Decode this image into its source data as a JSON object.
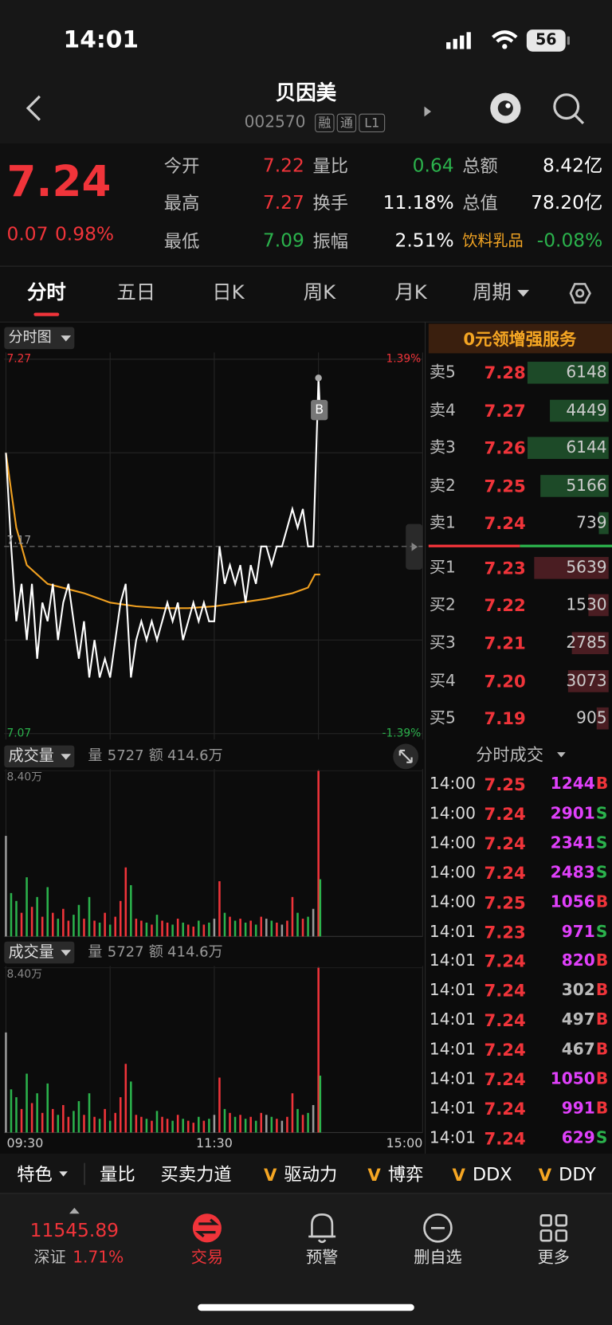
{
  "status": {
    "time": "14:01",
    "battery": "56"
  },
  "header": {
    "title": "贝因美",
    "code": "002570",
    "badges": [
      "融",
      "通",
      "L1"
    ]
  },
  "quote": {
    "price": "7.24",
    "change": "0.07",
    "change_pct": "0.98%",
    "color": "#f0343a",
    "stats": [
      [
        {
          "label": "今开",
          "value": "7.22",
          "color": "#f0343a"
        },
        {
          "label": "量比",
          "value": "0.64",
          "color": "#2bb24c"
        },
        {
          "label": "总额",
          "value": "8.42亿",
          "color": "#ffffff"
        }
      ],
      [
        {
          "label": "最高",
          "value": "7.27",
          "color": "#f0343a"
        },
        {
          "label": "换手",
          "value": "11.18%",
          "color": "#ffffff"
        },
        {
          "label": "总值",
          "value": "78.20亿",
          "color": "#ffffff"
        }
      ],
      [
        {
          "label": "最低",
          "value": "7.09",
          "color": "#2bb24c"
        },
        {
          "label": "振幅",
          "value": "2.51%",
          "color": "#ffffff"
        },
        {
          "label": "饮料乳品",
          "value": "-0.08%",
          "color": "#2bb24c",
          "label_color": "#f5a623"
        }
      ]
    ]
  },
  "tabs": {
    "items": [
      "分时",
      "五日",
      "日K",
      "周K",
      "月K",
      "周期"
    ],
    "active": 0
  },
  "intraday": {
    "type": "line",
    "label": "分时图",
    "marker": "B",
    "color": "#ffffff",
    "avg_color": "#f0a020",
    "up_color": "#f0343a",
    "down_color": "#2bb24c",
    "flat_color": "#9a9a9a",
    "ylim": [
      7.07,
      7.27
    ],
    "yticks": [
      7.07,
      7.17,
      7.27
    ],
    "pct_ticks": [
      {
        "value": -1.39,
        "label": "-1.39%"
      },
      {
        "value": 1.39,
        "label": "1.39%"
      }
    ],
    "xlim": [
      0,
      240
    ],
    "xticks": [
      {
        "value": 0,
        "label": "09:30"
      },
      {
        "value": 120,
        "label": "11:30"
      },
      {
        "value": 240,
        "label": "15:00"
      }
    ],
    "minutes": [
      0,
      3,
      6,
      9,
      12,
      15,
      18,
      21,
      24,
      27,
      30,
      33,
      36,
      39,
      42,
      45,
      48,
      51,
      54,
      57,
      60,
      63,
      66,
      69,
      72,
      75,
      78,
      81,
      84,
      87,
      90,
      93,
      96,
      99,
      102,
      105,
      108,
      111,
      114,
      117,
      120,
      123,
      126,
      129,
      132,
      135,
      138,
      141,
      144,
      147,
      150,
      153,
      156,
      159,
      162,
      165,
      168,
      171,
      174,
      177,
      180,
      181
    ],
    "prices": [
      7.22,
      7.17,
      7.13,
      7.15,
      7.12,
      7.15,
      7.11,
      7.14,
      7.13,
      7.15,
      7.12,
      7.14,
      7.15,
      7.13,
      7.11,
      7.13,
      7.1,
      7.12,
      7.1,
      7.11,
      7.1,
      7.12,
      7.14,
      7.15,
      7.1,
      7.12,
      7.13,
      7.12,
      7.13,
      7.12,
      7.13,
      7.14,
      7.13,
      7.14,
      7.12,
      7.13,
      7.14,
      7.13,
      7.14,
      7.13,
      7.13,
      7.17,
      7.15,
      7.16,
      7.15,
      7.16,
      7.14,
      7.16,
      7.15,
      7.17,
      7.17,
      7.16,
      7.17,
      7.17,
      7.18,
      7.19,
      7.18,
      7.19,
      7.17,
      7.17,
      7.26,
      7.24
    ],
    "avg_minutes": [
      0,
      6,
      12,
      24,
      45,
      60,
      75,
      90,
      105,
      120,
      135,
      150,
      165,
      174,
      178,
      181
    ],
    "avg": [
      7.22,
      7.18,
      7.16,
      7.15,
      7.145,
      7.14,
      7.138,
      7.137,
      7.137,
      7.138,
      7.14,
      7.142,
      7.145,
      7.148,
      7.155,
      7.155
    ]
  },
  "volume": {
    "type": "bar",
    "title": "成交量",
    "vol_label": "量",
    "vol": "5727",
    "amt_label": "额",
    "amt": "414.6万",
    "ylim": [
      0,
      84000
    ],
    "yticks": [
      {
        "value": 84000,
        "label": "8.40万"
      }
    ],
    "values": [
      51000,
      22000,
      18000,
      12000,
      30000,
      15000,
      20000,
      10000,
      25000,
      12000,
      9000,
      14000,
      8000,
      11000,
      16000,
      9000,
      20000,
      8000,
      7000,
      12000,
      6000,
      10000,
      18000,
      35000,
      26000,
      9000,
      8000,
      7000,
      6000,
      11000,
      8000,
      7000,
      6000,
      9000,
      7000,
      6000,
      5000,
      8000,
      6000,
      7000,
      9000,
      28000,
      12000,
      10000,
      8000,
      9000,
      7000,
      8000,
      6000,
      10000,
      9000,
      8000,
      7000,
      6000,
      8000,
      20000,
      12000,
      9000,
      10000,
      14000,
      84000,
      29000
    ]
  },
  "order_book": {
    "promo": "0元领增强服务",
    "sell_bar": "#1d4a28",
    "buy_bar": "#4a1d22",
    "price_color": "#f0343a",
    "sell": [
      {
        "label": "卖5",
        "price": "7.28",
        "volume": 6148
      },
      {
        "label": "卖4",
        "price": "7.27",
        "volume": 4449
      },
      {
        "label": "卖3",
        "price": "7.26",
        "volume": 6144
      },
      {
        "label": "卖2",
        "price": "7.25",
        "volume": 5166
      },
      {
        "label": "卖1",
        "price": "7.24",
        "volume": 739
      }
    ],
    "buy": [
      {
        "label": "买1",
        "price": "7.23",
        "volume": 5639
      },
      {
        "label": "买2",
        "price": "7.22",
        "volume": 1530
      },
      {
        "label": "买3",
        "price": "7.21",
        "volume": 2785
      },
      {
        "label": "买4",
        "price": "7.20",
        "volume": 3073
      },
      {
        "label": "买5",
        "price": "7.19",
        "volume": 905
      }
    ]
  },
  "trades": {
    "title": "分时成交",
    "price_color": "#f0343a",
    "buy_color": "#f0343a",
    "sell_color": "#2bb24c",
    "rows": [
      {
        "time": "14:00",
        "price": "7.25",
        "volume": 1244,
        "side": "B",
        "color": "#e040fb"
      },
      {
        "time": "14:00",
        "price": "7.24",
        "volume": 2901,
        "side": "S",
        "color": "#e040fb"
      },
      {
        "time": "14:00",
        "price": "7.24",
        "volume": 2341,
        "side": "S",
        "color": "#e040fb"
      },
      {
        "time": "14:00",
        "price": "7.24",
        "volume": 2483,
        "side": "S",
        "color": "#e040fb"
      },
      {
        "time": "14:00",
        "price": "7.25",
        "volume": 1056,
        "side": "B",
        "color": "#e040fb"
      },
      {
        "time": "14:01",
        "price": "7.23",
        "volume": 971,
        "side": "S",
        "color": "#e040fb"
      },
      {
        "time": "14:01",
        "price": "7.24",
        "volume": 820,
        "side": "B",
        "color": "#e040fb"
      },
      {
        "time": "14:01",
        "price": "7.24",
        "volume": 302,
        "side": "B",
        "color": "#bbbbbb"
      },
      {
        "time": "14:01",
        "price": "7.24",
        "volume": 497,
        "side": "B",
        "color": "#bbbbbb"
      },
      {
        "time": "14:01",
        "price": "7.24",
        "volume": 467,
        "side": "B",
        "color": "#bbbbbb"
      },
      {
        "time": "14:01",
        "price": "7.24",
        "volume": 1050,
        "side": "B",
        "color": "#e040fb"
      },
      {
        "time": "14:01",
        "price": "7.24",
        "volume": 991,
        "side": "B",
        "color": "#e040fb"
      },
      {
        "time": "14:01",
        "price": "7.24",
        "volume": 629,
        "side": "S",
        "color": "#e040fb"
      }
    ]
  },
  "toolbar": [
    {
      "label": "特色"
    },
    {
      "label": "量比"
    },
    {
      "label": "买卖力道"
    },
    {
      "prefix": "V",
      "label": "驱动力"
    },
    {
      "prefix": "V",
      "label": "博弈"
    },
    {
      "prefix": "V",
      "label": "DDX"
    },
    {
      "prefix": "V",
      "label": "DDY"
    }
  ],
  "nav": {
    "index": {
      "value": "11545.89",
      "name": "深证",
      "pct": "1.71%"
    },
    "items": [
      {
        "label": "交易",
        "active": true
      },
      {
        "label": "预警"
      },
      {
        "label": "删自选"
      },
      {
        "label": "更多"
      }
    ]
  }
}
